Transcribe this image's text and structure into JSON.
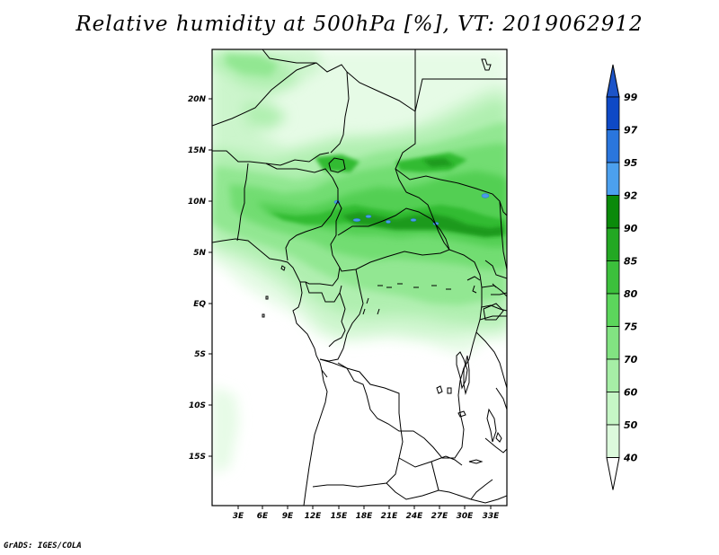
{
  "title": "Relative humidity at 500hPa [%], VT: 2019062912",
  "credit": "GrADS: IGES/COLA",
  "map": {
    "lat_ticks": [
      "20N",
      "15N",
      "10N",
      "5N",
      "EQ",
      "5S",
      "10S",
      "15S"
    ],
    "lon_ticks": [
      "3E",
      "6E",
      "9E",
      "12E",
      "15E",
      "18E",
      "21E",
      "24E",
      "27E",
      "30E",
      "33E"
    ]
  },
  "colorbar": {
    "levels": [
      "99",
      "97",
      "95",
      "92",
      "90",
      "85",
      "80",
      "75",
      "70",
      "60",
      "50",
      "40"
    ],
    "colors": [
      "#0e49c6",
      "#2a76dd",
      "#4ca0ee",
      "#0a8a0a",
      "#23a823",
      "#3cc03c",
      "#5cd65c",
      "#82e382",
      "#a6eea6",
      "#c6f6c6",
      "#dcfadc",
      "#f0fdf0"
    ],
    "top_color": "#1c54c8",
    "bottom_color": "#ffffff"
  }
}
